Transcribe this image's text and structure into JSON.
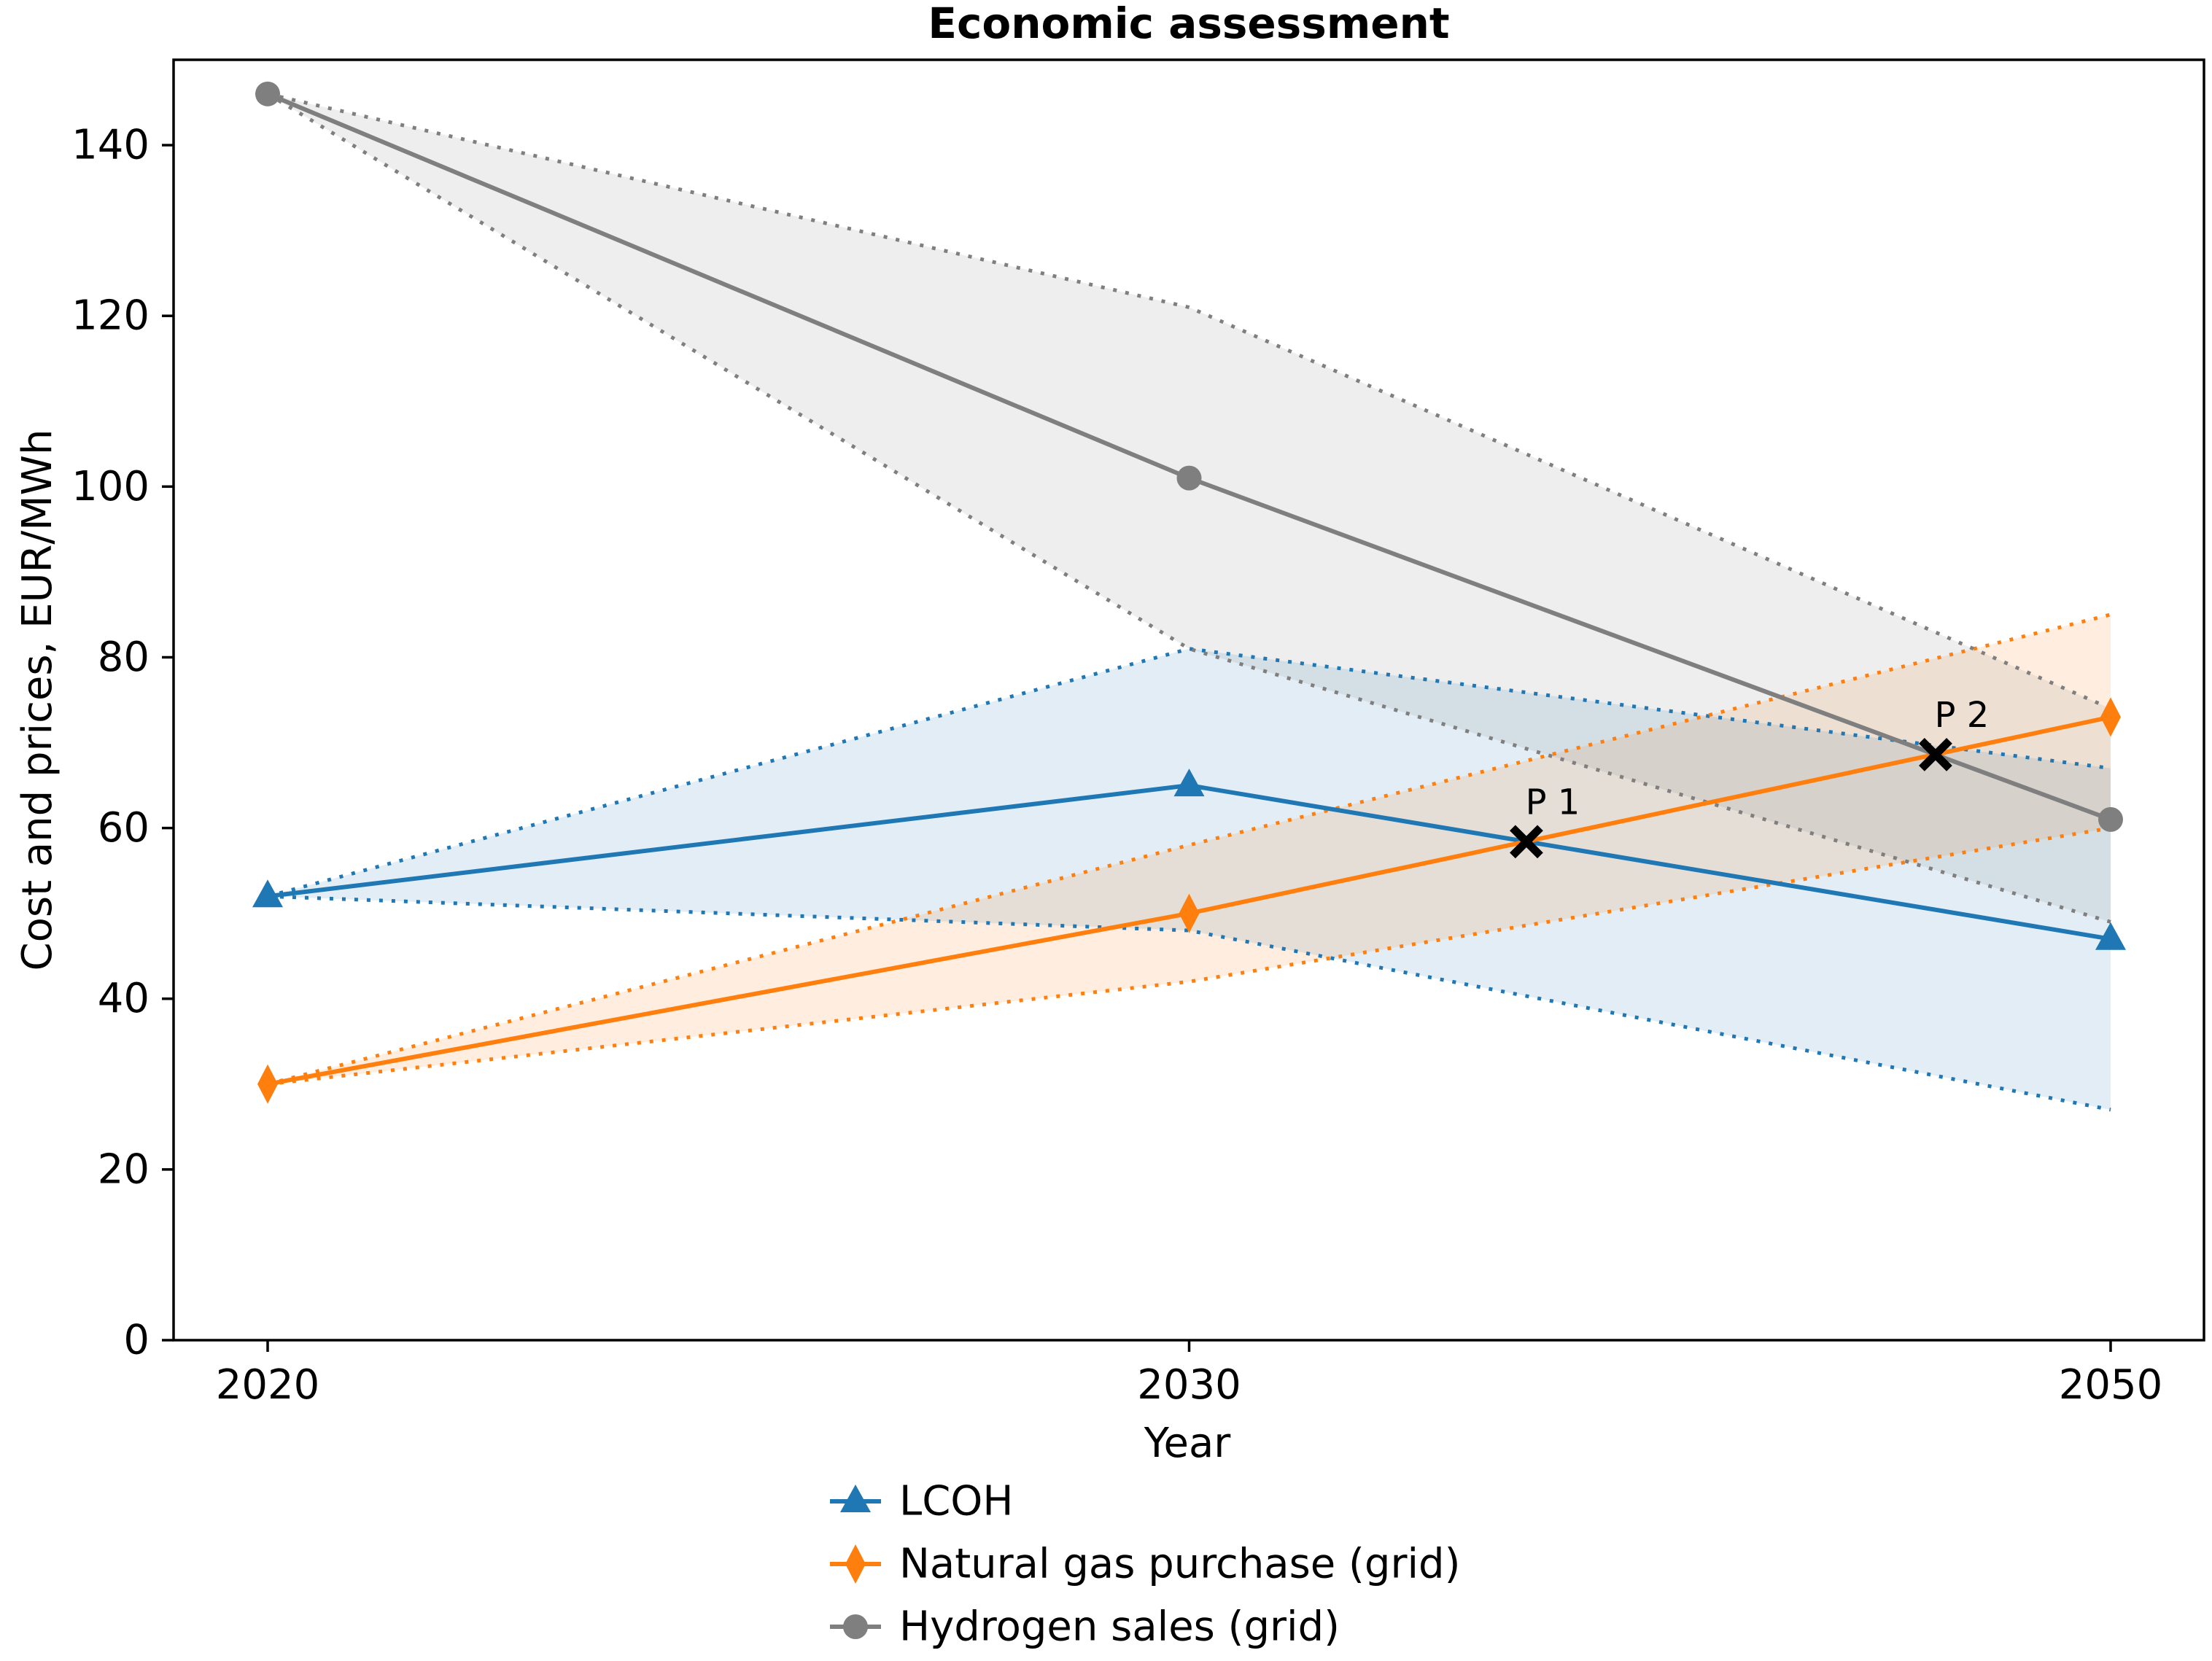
{
  "page": {
    "background": "#ffffff",
    "text_color": "#000000"
  },
  "chart_data": {
    "type": "line",
    "title": "Economic assessment",
    "xlabel": "Year",
    "ylabel": "Cost and prices, EUR/MWh",
    "x_tick_labels": [
      "2020",
      "2030",
      "2050"
    ],
    "x_years": [
      2020,
      2030,
      2050
    ],
    "x_spacing": "equal",
    "y_ticks": [
      0,
      20,
      40,
      60,
      80,
      100,
      120,
      140
    ],
    "ylim": [
      0,
      150
    ],
    "grid": false,
    "legend_position": "bottom-center",
    "band_note": "each series has a shaded uncertainty band with dotted edges converging at the 2020 value",
    "series": [
      {
        "name": "LCOH",
        "color": "#1f77b4",
        "marker": "triangle",
        "values": [
          52,
          65,
          47
        ],
        "band_upper": [
          52,
          81,
          67
        ],
        "band_lower": [
          52,
          48,
          27
        ]
      },
      {
        "name": "Natural gas purchase (grid)",
        "color": "#ff7f0e",
        "marker": "diamond",
        "values": [
          30,
          50,
          73
        ],
        "band_upper": [
          30,
          58,
          85
        ],
        "band_lower": [
          30,
          42,
          60
        ]
      },
      {
        "name": "Hydrogen sales (grid)",
        "color": "#7f7f7f",
        "marker": "circle",
        "values": [
          146,
          101,
          61
        ],
        "band_upper": [
          146,
          121,
          74
        ],
        "band_lower": [
          146,
          81,
          49
        ]
      }
    ],
    "annotations": [
      {
        "label": "P 1",
        "x_index": 1.366,
        "year": 2037,
        "y": 58.4,
        "marker": "x",
        "color": "#000000"
      },
      {
        "label": "P 2",
        "x_index": 1.81,
        "year": 2046,
        "y": 68.6,
        "marker": "x",
        "color": "#000000"
      }
    ]
  }
}
